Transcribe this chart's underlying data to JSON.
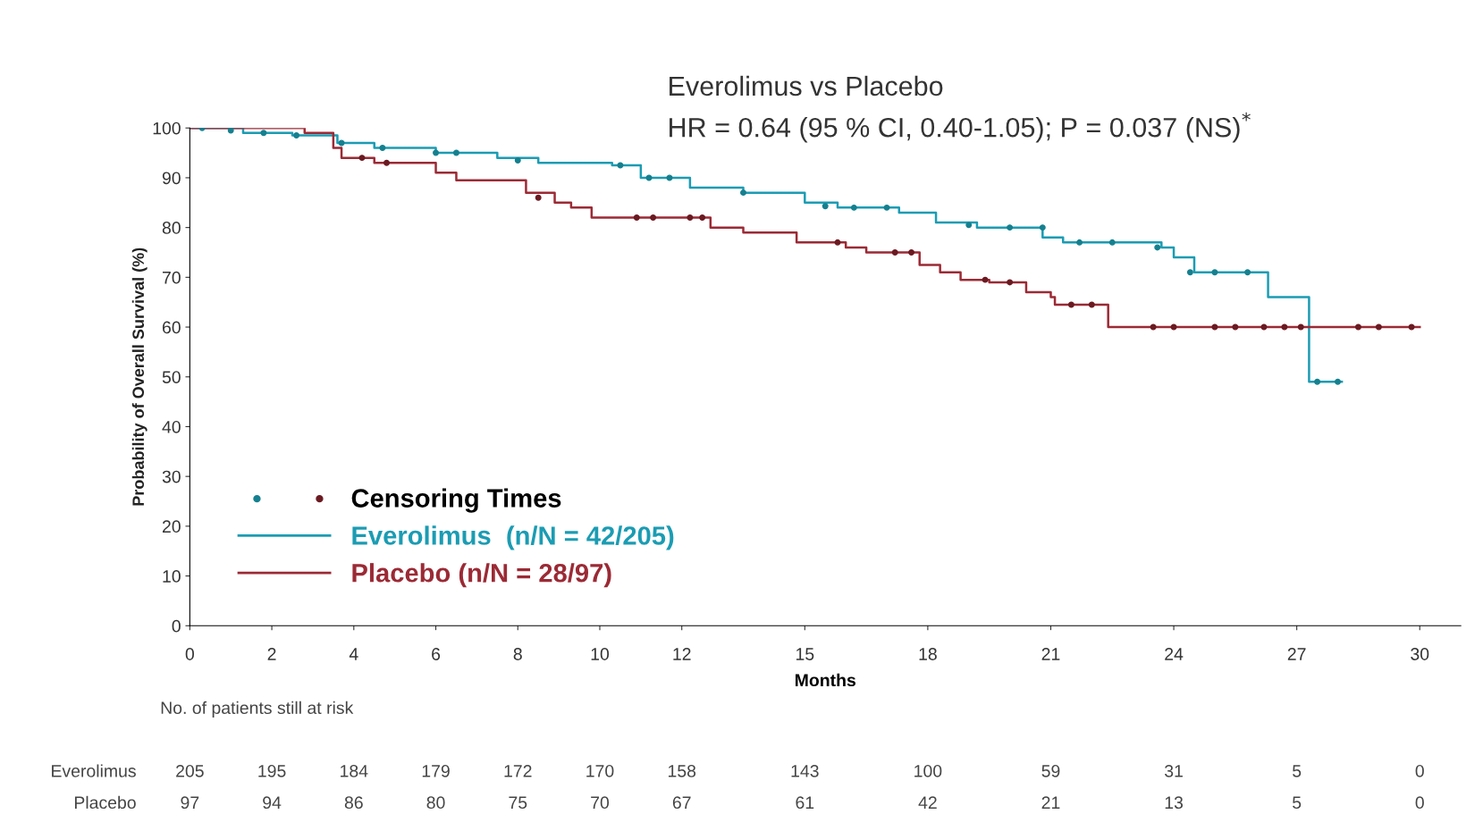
{
  "chart_data": {
    "type": "step",
    "title": "Everolimus vs Placebo",
    "subtitle": "HR = 0.64 (95 % CI, 0.40-1.05); P = 0.037 (NS)$^{*}$",
    "xlabel": "Months",
    "ylabel": "Probability of Overall Survival (%)",
    "legend_title": "Censoring Times",
    "xlim": [
      0,
      31
    ],
    "ylim": [
      0,
      100
    ],
    "xticks": [
      0,
      2,
      4,
      6,
      8,
      10,
      12,
      15,
      18,
      21,
      24,
      27,
      30
    ],
    "yticks": [
      0,
      10,
      20,
      30,
      40,
      50,
      60,
      70,
      80,
      90,
      100
    ],
    "grid": false,
    "legend": "bottom left",
    "series": [
      {
        "name": "Everolimus  (n/N = 42/205)",
        "color": "#1b9cb3",
        "x": [
          0,
          1.3,
          2.5,
          3.6,
          4.5,
          6,
          7.5,
          8.5,
          10.3,
          11,
          12.2,
          13.5,
          15,
          15.8,
          17.3,
          18.2,
          19.2,
          20.8,
          21.3,
          23.7,
          24,
          24.5,
          26.3,
          27.3,
          28.1
        ],
        "values": [
          100,
          99,
          98.5,
          97,
          96,
          95,
          94,
          93,
          92.5,
          90,
          88,
          87,
          85,
          84,
          83,
          81,
          80,
          78,
          77,
          76,
          74,
          71,
          66,
          49,
          49
        ]
      },
      {
        "name": "Placebo (n/N = 28/97)",
        "color": "#9b2a35",
        "x": [
          0,
          2.8,
          3.5,
          3.7,
          4.5,
          6,
          6.5,
          8.2,
          8.9,
          9.3,
          9.8,
          12.7,
          13.5,
          14.8,
          16,
          16.5,
          17.8,
          18.3,
          18.8,
          19.5,
          20.4,
          21,
          21.1,
          22.4,
          30
        ],
        "values": [
          100,
          99,
          96,
          94,
          93,
          91,
          89.5,
          87,
          85,
          84,
          82,
          80,
          79,
          77,
          76,
          75,
          72.5,
          71,
          69.5,
          69,
          67,
          66,
          64.5,
          60,
          60
        ]
      },
      {
        "type": "scatter",
        "color": "#15808f",
        "marker": "circle",
        "x": [
          0.3,
          1,
          1.8,
          2.6,
          3.7,
          4.7,
          6,
          6.5,
          8,
          10.5,
          11.2,
          11.7,
          13.5,
          15.5,
          16.2,
          17,
          19,
          20,
          20.8,
          21.7,
          22.5,
          23.6,
          24.4,
          25,
          25.8,
          27.5,
          28
        ],
        "values": [
          100,
          99.5,
          99,
          98.5,
          97,
          96,
          95,
          95,
          93.5,
          92.5,
          90,
          90,
          87,
          84.3,
          84,
          84,
          80.5,
          80,
          80,
          77,
          77,
          76,
          71,
          71,
          71,
          49,
          49
        ]
      },
      {
        "type": "scatter",
        "color": "#6b1a22",
        "marker": "circle",
        "x": [
          4.2,
          4.8,
          8.5,
          10.9,
          11.3,
          12.2,
          12.5,
          15.8,
          17.2,
          17.6,
          19.4,
          20,
          21.5,
          22,
          23.5,
          24,
          25,
          25.5,
          26.2,
          26.7,
          27.1,
          28.5,
          29,
          29.8
        ],
        "values": [
          94,
          93,
          86,
          82,
          82,
          82,
          82,
          77,
          75,
          75,
          69.5,
          69,
          64.5,
          64.5,
          60,
          60,
          60,
          60,
          60,
          60,
          60,
          60,
          60,
          60
        ]
      }
    ],
    "annotations": [
      "No. of patients still at risk",
      "Everolimus",
      "205 195 184 179 172 170 158 143 100 59 31 5 0",
      "Placebo",
      "97 94 86 80 75 70 67 61 42 21 13 5 0"
    ]
  }
}
